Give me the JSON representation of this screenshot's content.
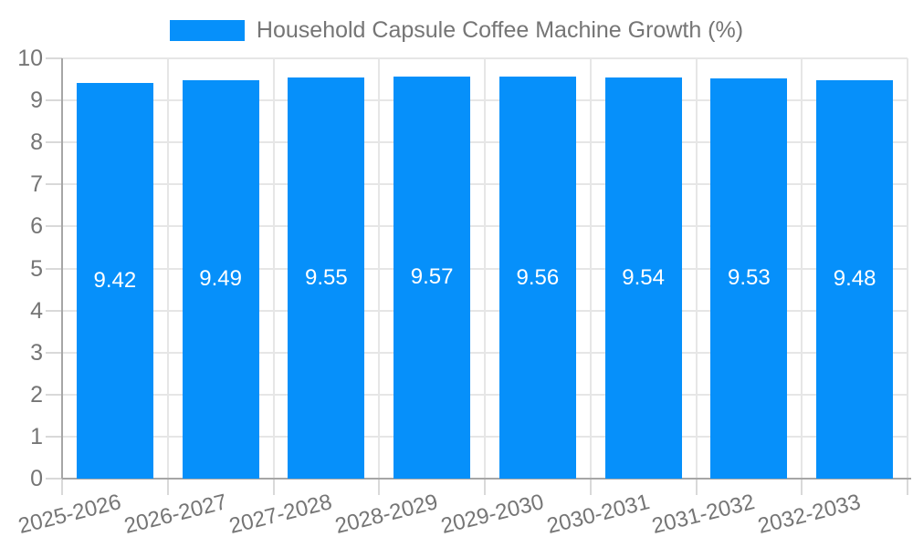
{
  "chart_data": {
    "type": "bar",
    "title": "Household Capsule Coffee Machine Growth (%)",
    "categories": [
      "2025-2026",
      "2026-2027",
      "2027-2028",
      "2028-2029",
      "2029-2030",
      "2030-2031",
      "2031-2032",
      "2032-2033"
    ],
    "values": [
      9.42,
      9.49,
      9.55,
      9.57,
      9.56,
      9.54,
      9.53,
      9.48
    ],
    "value_labels": [
      "9.42",
      "9.49",
      "9.55",
      "9.57",
      "9.56",
      "9.54",
      "9.53",
      "9.48"
    ],
    "xlabel": "",
    "ylabel": "",
    "ylim": [
      0,
      10
    ],
    "ytick_step": 1,
    "ytick_labels": [
      "0",
      "1",
      "2",
      "3",
      "4",
      "5",
      "6",
      "7",
      "8",
      "9",
      "10"
    ],
    "grid": true,
    "legend_position": "top",
    "colors": {
      "bar": "#0690fa",
      "value_label": "#ffffff",
      "axis_text": "#757575",
      "title_text": "#757575",
      "gridline": "#e6e6e6",
      "axis_line": "#a6a6a6",
      "tick": "#d9d9d9"
    }
  }
}
